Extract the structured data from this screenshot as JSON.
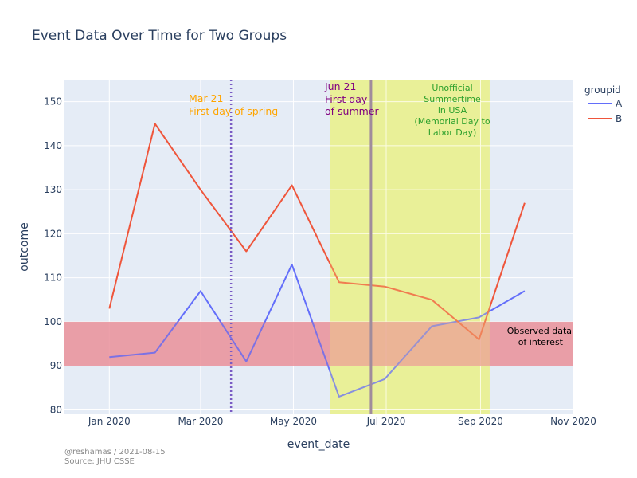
{
  "chart_data": {
    "type": "line",
    "title": "Event Data Over Time for Two Groups",
    "xlabel": "event_date",
    "ylabel": "outcome",
    "x_ticks": [
      "Jan 2020",
      "Mar 2020",
      "May 2020",
      "Jul 2020",
      "Sep 2020",
      "Nov 2020"
    ],
    "y_ticks": [
      80,
      90,
      100,
      110,
      120,
      130,
      140,
      150
    ],
    "xlim": [
      "2019-12-02",
      "2020-11-01"
    ],
    "ylim": [
      79,
      155
    ],
    "grid": true,
    "legend": {
      "title": "groupid",
      "position": "top-right"
    },
    "x": [
      "2020-01-01",
      "2020-01-31",
      "2020-03-01",
      "2020-03-31",
      "2020-04-30",
      "2020-05-31",
      "2020-06-30",
      "2020-07-31",
      "2020-08-31",
      "2020-09-30"
    ],
    "series": [
      {
        "name": "A",
        "color": "#636efa",
        "values": [
          92,
          93,
          107,
          91,
          113,
          83,
          87,
          99,
          101,
          107
        ]
      },
      {
        "name": "B",
        "color": "#ef553b",
        "values": [
          103,
          145,
          130,
          116,
          131,
          109,
          108,
          105,
          96,
          127
        ]
      }
    ],
    "shapes": {
      "band": {
        "y0": 90,
        "y1": 100,
        "color": "#e8949f",
        "label_line1": "Observed data",
        "label_line2": "of interest"
      },
      "summer": {
        "x0": "2020-05-25",
        "x1": "2020-09-07",
        "color": "#e6ef9b",
        "label_lines": [
          "Unofficial",
          "Summertime",
          "in USA",
          "(Memorial Day to",
          "Labor Day)"
        ],
        "label_color": "#2ca02c"
      },
      "spring_line": {
        "x": "2020-03-21",
        "color": "#7a5cc4",
        "label_line1": "Mar 21",
        "label_line2": "First day of spring",
        "label_color": "#ffa500"
      },
      "summer_line": {
        "x": "2020-06-21",
        "color": "#a08c9c",
        "label_line1": "Jun 21",
        "label_line2": "First day",
        "label_line3": "of summer",
        "label_color": "#800080"
      }
    },
    "source_line1": "@reshamas / 2021-08-15",
    "source_line2": "Source: JHU CSSE"
  }
}
